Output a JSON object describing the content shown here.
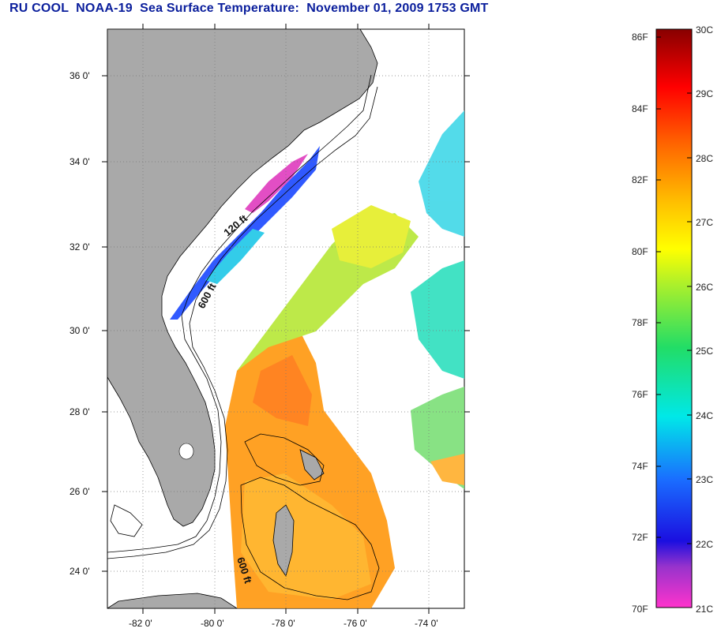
{
  "title": "RU COOL  NOAA-19  Sea Surface Temperature:  November 01, 2009 1753 GMT",
  "map": {
    "lat_labels": [
      "36 0'",
      "34 0'",
      "32 0'",
      "30 0'",
      "28 0'",
      "26 0'",
      "24 0'"
    ],
    "lon_labels": [
      "-82 0'",
      "-80 0'",
      "-78 0'",
      "-76 0'",
      "-74 0'"
    ],
    "isobath_labels": [
      "120 ft",
      "600 ft",
      "600 ft"
    ],
    "colors": {
      "land": "#a9a9a9",
      "ocean": "#ffffff",
      "grid": "#777777"
    }
  },
  "colorbar": {
    "fahrenheit_labels": [
      "86F",
      "84F",
      "82F",
      "80F",
      "78F",
      "76F",
      "74F",
      "72F",
      "70F"
    ],
    "celsius_labels": [
      "30C",
      "29C",
      "28C",
      "27C",
      "26C",
      "25C",
      "24C",
      "23C",
      "22C",
      "21C"
    ],
    "range_f": [
      70,
      86
    ],
    "range_c": [
      21,
      30
    ]
  }
}
